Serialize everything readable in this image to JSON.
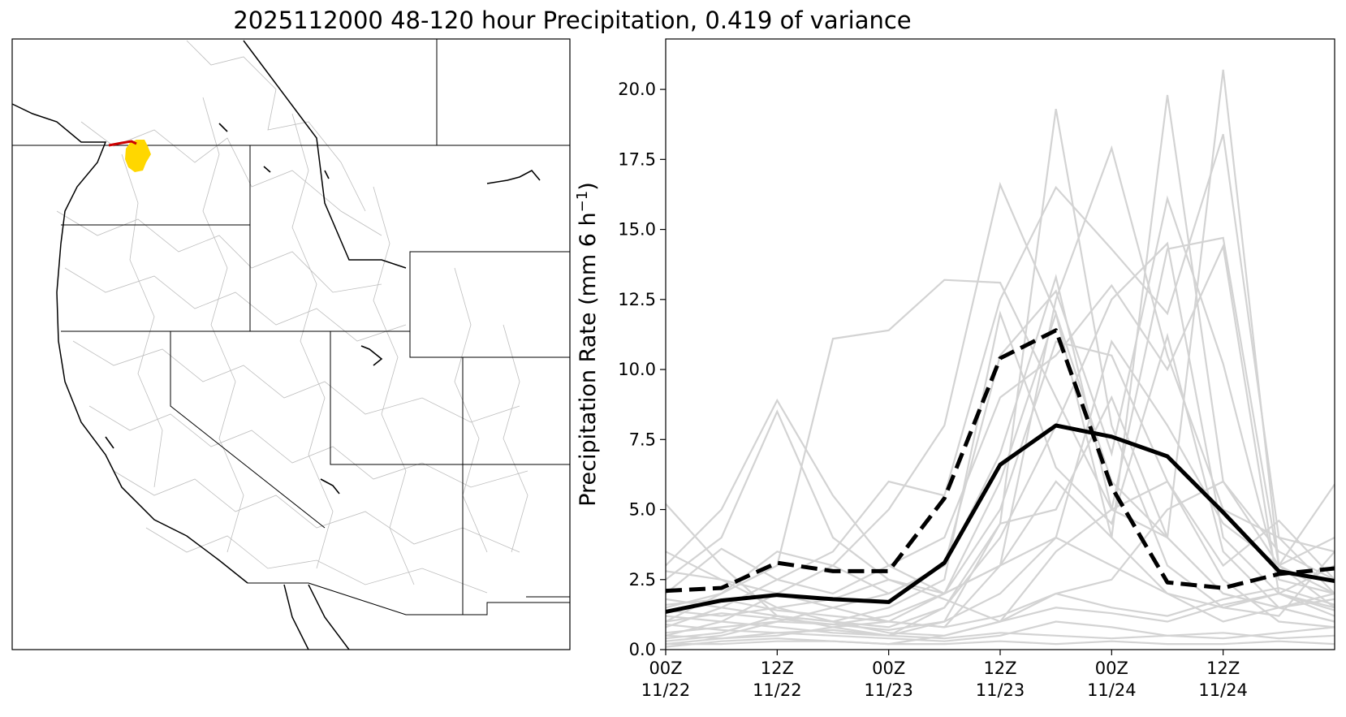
{
  "title": "2025112000 48-120 hour Precipitation, 0.419 of variance",
  "map": {
    "type": "map",
    "colors": {
      "land": "#ffffff",
      "state_lines": "#000000",
      "basin_lines": "#b3b3b3",
      "highlight_fill": "#ffd700",
      "highlight_line": "#cc0000"
    }
  },
  "chart_data": {
    "type": "line",
    "ylabel": "Precipitation Rate (mm 6 h",
    "ylabel_sup": "−1",
    "ylabel_close": ")",
    "xlim": [
      0,
      12
    ],
    "ylim": [
      0,
      21.8
    ],
    "yticks": [
      0.0,
      2.5,
      5.0,
      7.5,
      10.0,
      12.5,
      15.0,
      17.5,
      20.0
    ],
    "ytick_labels": [
      "0.0",
      "2.5",
      "5.0",
      "7.5",
      "10.0",
      "12.5",
      "15.0",
      "17.5",
      "20.0"
    ],
    "xticks": [
      {
        "x": 0,
        "line1": "00Z",
        "line2": "11/22"
      },
      {
        "x": 2,
        "line1": "12Z",
        "line2": "11/22"
      },
      {
        "x": 4,
        "line1": "00Z",
        "line2": "11/23"
      },
      {
        "x": 6,
        "line1": "12Z",
        "line2": "11/23"
      },
      {
        "x": 8,
        "line1": "00Z",
        "line2": "11/24"
      },
      {
        "x": 10,
        "line1": "12Z",
        "line2": "11/24"
      }
    ],
    "grid": false,
    "member_color": "#d3d3d3",
    "members": [
      [
        5.2,
        3.0,
        1.2,
        0.8,
        0.5,
        1.0,
        4.5,
        19.3,
        8.0,
        3.0,
        1.5,
        2.0,
        3.0
      ],
      [
        3.0,
        5.0,
        8.9,
        5.5,
        3.0,
        2.0,
        3.0,
        12.5,
        17.9,
        10.5,
        5.0,
        4.0,
        2.0
      ],
      [
        2.5,
        4.0,
        8.5,
        4.0,
        2.5,
        2.0,
        6.0,
        12.0,
        4.0,
        19.8,
        6.0,
        3.0,
        1.5
      ],
      [
        1.0,
        2.0,
        3.0,
        11.1,
        11.4,
        13.2,
        13.1,
        9.0,
        5.0,
        4.0,
        2.0,
        1.5,
        1.0
      ],
      [
        0.5,
        1.0,
        2.0,
        3.0,
        5.0,
        8.0,
        16.6,
        12.0,
        6.0,
        4.0,
        20.7,
        3.0,
        2.0
      ],
      [
        0.8,
        1.5,
        2.5,
        3.5,
        6.0,
        5.5,
        12.5,
        16.5,
        14.3,
        12.0,
        18.4,
        4.0,
        3.5
      ],
      [
        1.5,
        2.0,
        3.5,
        3.0,
        2.0,
        3.0,
        10.5,
        12.8,
        7.0,
        16.1,
        10.2,
        2.5,
        2.0
      ],
      [
        0.3,
        0.5,
        1.0,
        1.5,
        2.0,
        3.0,
        7.0,
        13.3,
        5.0,
        14.3,
        14.7,
        3.0,
        5.9
      ],
      [
        1.2,
        1.0,
        0.8,
        0.6,
        0.5,
        1.5,
        4.0,
        8.0,
        12.5,
        14.5,
        4.0,
        2.0,
        1.5
      ],
      [
        2.0,
        3.6,
        2.5,
        2.0,
        3.0,
        4.0,
        9.0,
        10.5,
        13.0,
        10.0,
        14.4,
        2.0,
        1.2
      ],
      [
        0.2,
        0.4,
        0.5,
        0.8,
        1.0,
        2.0,
        5.0,
        11.0,
        10.5,
        6.0,
        3.0,
        4.6,
        2.5
      ],
      [
        1.8,
        1.5,
        1.2,
        1.0,
        1.5,
        2.5,
        12.0,
        6.5,
        4.5,
        11.2,
        3.5,
        1.5,
        1.8
      ],
      [
        0.6,
        0.8,
        1.0,
        0.9,
        0.7,
        1.0,
        2.0,
        4.0,
        11.0,
        8.0,
        4.5,
        3.0,
        4.0
      ],
      [
        0.1,
        0.3,
        0.4,
        0.3,
        0.2,
        0.5,
        1.0,
        2.0,
        2.5,
        5.0,
        6.0,
        3.5,
        2.5
      ],
      [
        1.4,
        1.2,
        1.5,
        1.8,
        2.5,
        1.8,
        1.0,
        1.5,
        1.3,
        1.0,
        1.6,
        2.0,
        1.4
      ],
      [
        2.8,
        2.5,
        2.0,
        1.5,
        1.0,
        0.8,
        3.0,
        6.0,
        4.0,
        2.0,
        1.0,
        1.5,
        2.0
      ],
      [
        0.9,
        0.7,
        0.6,
        0.5,
        0.4,
        0.3,
        0.5,
        1.0,
        0.8,
        0.5,
        0.4,
        0.6,
        0.8
      ],
      [
        0.4,
        0.6,
        1.2,
        1.0,
        0.8,
        1.5,
        4.5,
        5.0,
        9.0,
        4.0,
        2.0,
        1.5,
        1.0
      ],
      [
        3.5,
        2.5,
        1.5,
        1.0,
        0.6,
        0.5,
        1.0,
        3.5,
        5.0,
        6.0,
        2.5,
        1.0,
        0.8
      ],
      [
        1.0,
        1.3,
        1.1,
        0.9,
        1.2,
        2.0,
        3.0,
        4.0,
        3.0,
        2.0,
        1.5,
        1.2,
        3.5
      ],
      [
        0.2,
        0.2,
        0.3,
        0.3,
        0.2,
        0.2,
        0.3,
        0.2,
        0.3,
        0.2,
        0.2,
        0.3,
        0.2
      ],
      [
        0.5,
        0.4,
        0.6,
        0.7,
        0.5,
        0.4,
        0.6,
        0.5,
        0.4,
        0.5,
        0.6,
        0.4,
        0.5
      ],
      [
        1.6,
        1.8,
        1.4,
        1.2,
        1.0,
        0.8,
        1.2,
        2.0,
        1.5,
        1.2,
        1.8,
        2.2,
        1.6
      ]
    ],
    "series": [
      {
        "style": "dashed",
        "color": "#000000",
        "values": [
          2.1,
          2.2,
          3.1,
          2.8,
          2.8,
          5.4,
          10.4,
          11.4,
          5.8,
          2.4,
          2.2,
          2.7,
          2.9
        ]
      },
      {
        "style": "solid",
        "color": "#000000",
        "values": [
          1.35,
          1.75,
          1.95,
          1.8,
          1.7,
          3.1,
          6.6,
          8.0,
          7.6,
          6.9,
          4.9,
          2.8,
          2.45
        ]
      }
    ]
  }
}
